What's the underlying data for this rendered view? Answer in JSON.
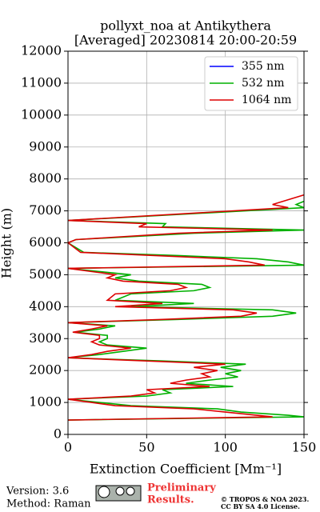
{
  "chart_data": {
    "type": "line",
    "title": "pollyxt_noa at Antikythera",
    "subtitle": "[Averaged] 20230814 20:00-20:59",
    "xlabel": "Extinction Coefficient [Mm⁻¹]",
    "ylabel": "Height (m)",
    "xlim": [
      0,
      150
    ],
    "xticks": [
      0,
      50,
      100,
      150
    ],
    "ylim": [
      0,
      12000
    ],
    "yticks": [
      0,
      1000,
      2000,
      3000,
      4000,
      5000,
      6000,
      7000,
      8000,
      9000,
      10000,
      11000,
      12000
    ],
    "grid": true,
    "legend": "upper right",
    "series": [
      {
        "name": "355 nm",
        "color": "#0000ff",
        "x": [],
        "y": []
      },
      {
        "name": "532 nm",
        "color": "#00b000",
        "x": [
          0,
          150,
          140,
          110,
          95,
          40,
          20,
          0,
          50,
          65,
          60,
          105,
          75,
          90,
          108,
          100,
          110,
          97,
          113,
          60,
          0,
          20,
          35,
          50,
          25,
          20,
          25,
          25,
          5,
          20,
          30,
          0,
          70,
          130,
          145,
          130,
          40,
          80,
          30,
          40,
          80,
          90,
          85,
          45,
          30,
          40,
          0,
          150,
          140,
          120,
          70,
          10,
          0,
          5,
          80,
          150,
          60,
          62,
          0,
          150,
          145,
          150
        ],
        "y": [
          450,
          550,
          600,
          700,
          800,
          900,
          1000,
          1100,
          1200,
          1300,
          1400,
          1500,
          1600,
          1700,
          1800,
          1900,
          2000,
          2100,
          2200,
          2300,
          2400,
          2500,
          2600,
          2700,
          2800,
          2900,
          3000,
          3100,
          3200,
          3300,
          3400,
          3500,
          3600,
          3700,
          3800,
          3900,
          4000,
          4100,
          4200,
          4400,
          4500,
          4600,
          4700,
          4800,
          4900,
          5000,
          5200,
          5300,
          5400,
          5500,
          5600,
          5700,
          6000,
          6100,
          6300,
          6400,
          6500,
          6600,
          6700,
          7100,
          7200,
          7300
        ]
      },
      {
        "name": "1064 nm",
        "color": "#dd0000",
        "x": [
          0,
          130,
          120,
          100,
          80,
          30,
          15,
          0,
          40,
          55,
          50,
          90,
          65,
          75,
          90,
          85,
          95,
          80,
          100,
          50,
          0,
          15,
          25,
          40,
          20,
          15,
          20,
          20,
          3,
          15,
          25,
          0,
          60,
          110,
          120,
          105,
          30,
          60,
          25,
          30,
          65,
          75,
          70,
          35,
          25,
          30,
          0,
          125,
          115,
          100,
          55,
          8,
          0,
          5,
          70,
          130,
          45,
          50,
          0,
          140,
          130,
          150
        ],
        "y": [
          450,
          550,
          600,
          700,
          800,
          900,
          1000,
          1100,
          1200,
          1300,
          1400,
          1500,
          1600,
          1700,
          1800,
          1900,
          2000,
          2100,
          2200,
          2300,
          2400,
          2500,
          2600,
          2700,
          2800,
          2900,
          3000,
          3100,
          3200,
          3300,
          3400,
          3500,
          3600,
          3700,
          3800,
          3900,
          4000,
          4100,
          4200,
          4400,
          4500,
          4600,
          4700,
          4800,
          4900,
          5000,
          5200,
          5300,
          5400,
          5500,
          5600,
          5700,
          6000,
          6100,
          6300,
          6400,
          6500,
          6600,
          6700,
          7100,
          7200,
          7500
        ]
      }
    ]
  },
  "footer": {
    "version": "Version: 3.6",
    "method": "Method: Raman",
    "preliminary": "Preliminary",
    "results": "Results.",
    "copyright": "© TROPOS & NOA 2023.",
    "license": "CC BY SA 4.0 License."
  }
}
